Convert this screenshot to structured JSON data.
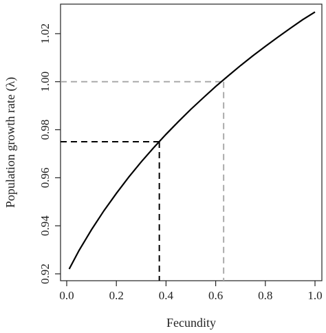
{
  "chart_data": {
    "type": "line",
    "xlabel": "Fecundity",
    "ylabel": "Population growth rate (λ)",
    "xlim": [
      0.0,
      1.0
    ],
    "ylim": [
      0.92,
      1.03
    ],
    "x_ticks": [
      0.0,
      0.2,
      0.4,
      0.6,
      0.8,
      1.0
    ],
    "x_tick_labels": [
      "0.0",
      "0.2",
      "0.4",
      "0.6",
      "0.8",
      "1.0"
    ],
    "y_ticks": [
      0.92,
      0.94,
      0.96,
      0.98,
      1.0,
      1.02
    ],
    "y_tick_labels": [
      "0.92",
      "0.94",
      "0.96",
      "0.98",
      "1.00",
      "1.02"
    ],
    "grid": false,
    "series": [
      {
        "color": "#000000",
        "style": "solid",
        "x": [
          0.01,
          0.05,
          0.1,
          0.15,
          0.2,
          0.25,
          0.3,
          0.35,
          0.4,
          0.45,
          0.5,
          0.55,
          0.6,
          0.65,
          0.7,
          0.75,
          0.8,
          0.85,
          0.9,
          0.95,
          1.0
        ],
        "y": [
          0.922,
          0.9298,
          0.9384,
          0.9463,
          0.9535,
          0.9603,
          0.9666,
          0.9725,
          0.9781,
          0.9834,
          0.9885,
          0.9933,
          0.998,
          1.0024,
          1.0067,
          1.0108,
          1.0147,
          1.0185,
          1.0222,
          1.0258,
          1.029
        ]
      }
    ],
    "reference_lines": [
      {
        "color": "#000000",
        "style": "dashed",
        "x": 0.373,
        "y": 0.975
      },
      {
        "color": "#aaaaaa",
        "style": "dashed",
        "x": 0.632,
        "y": 1.0
      }
    ]
  }
}
